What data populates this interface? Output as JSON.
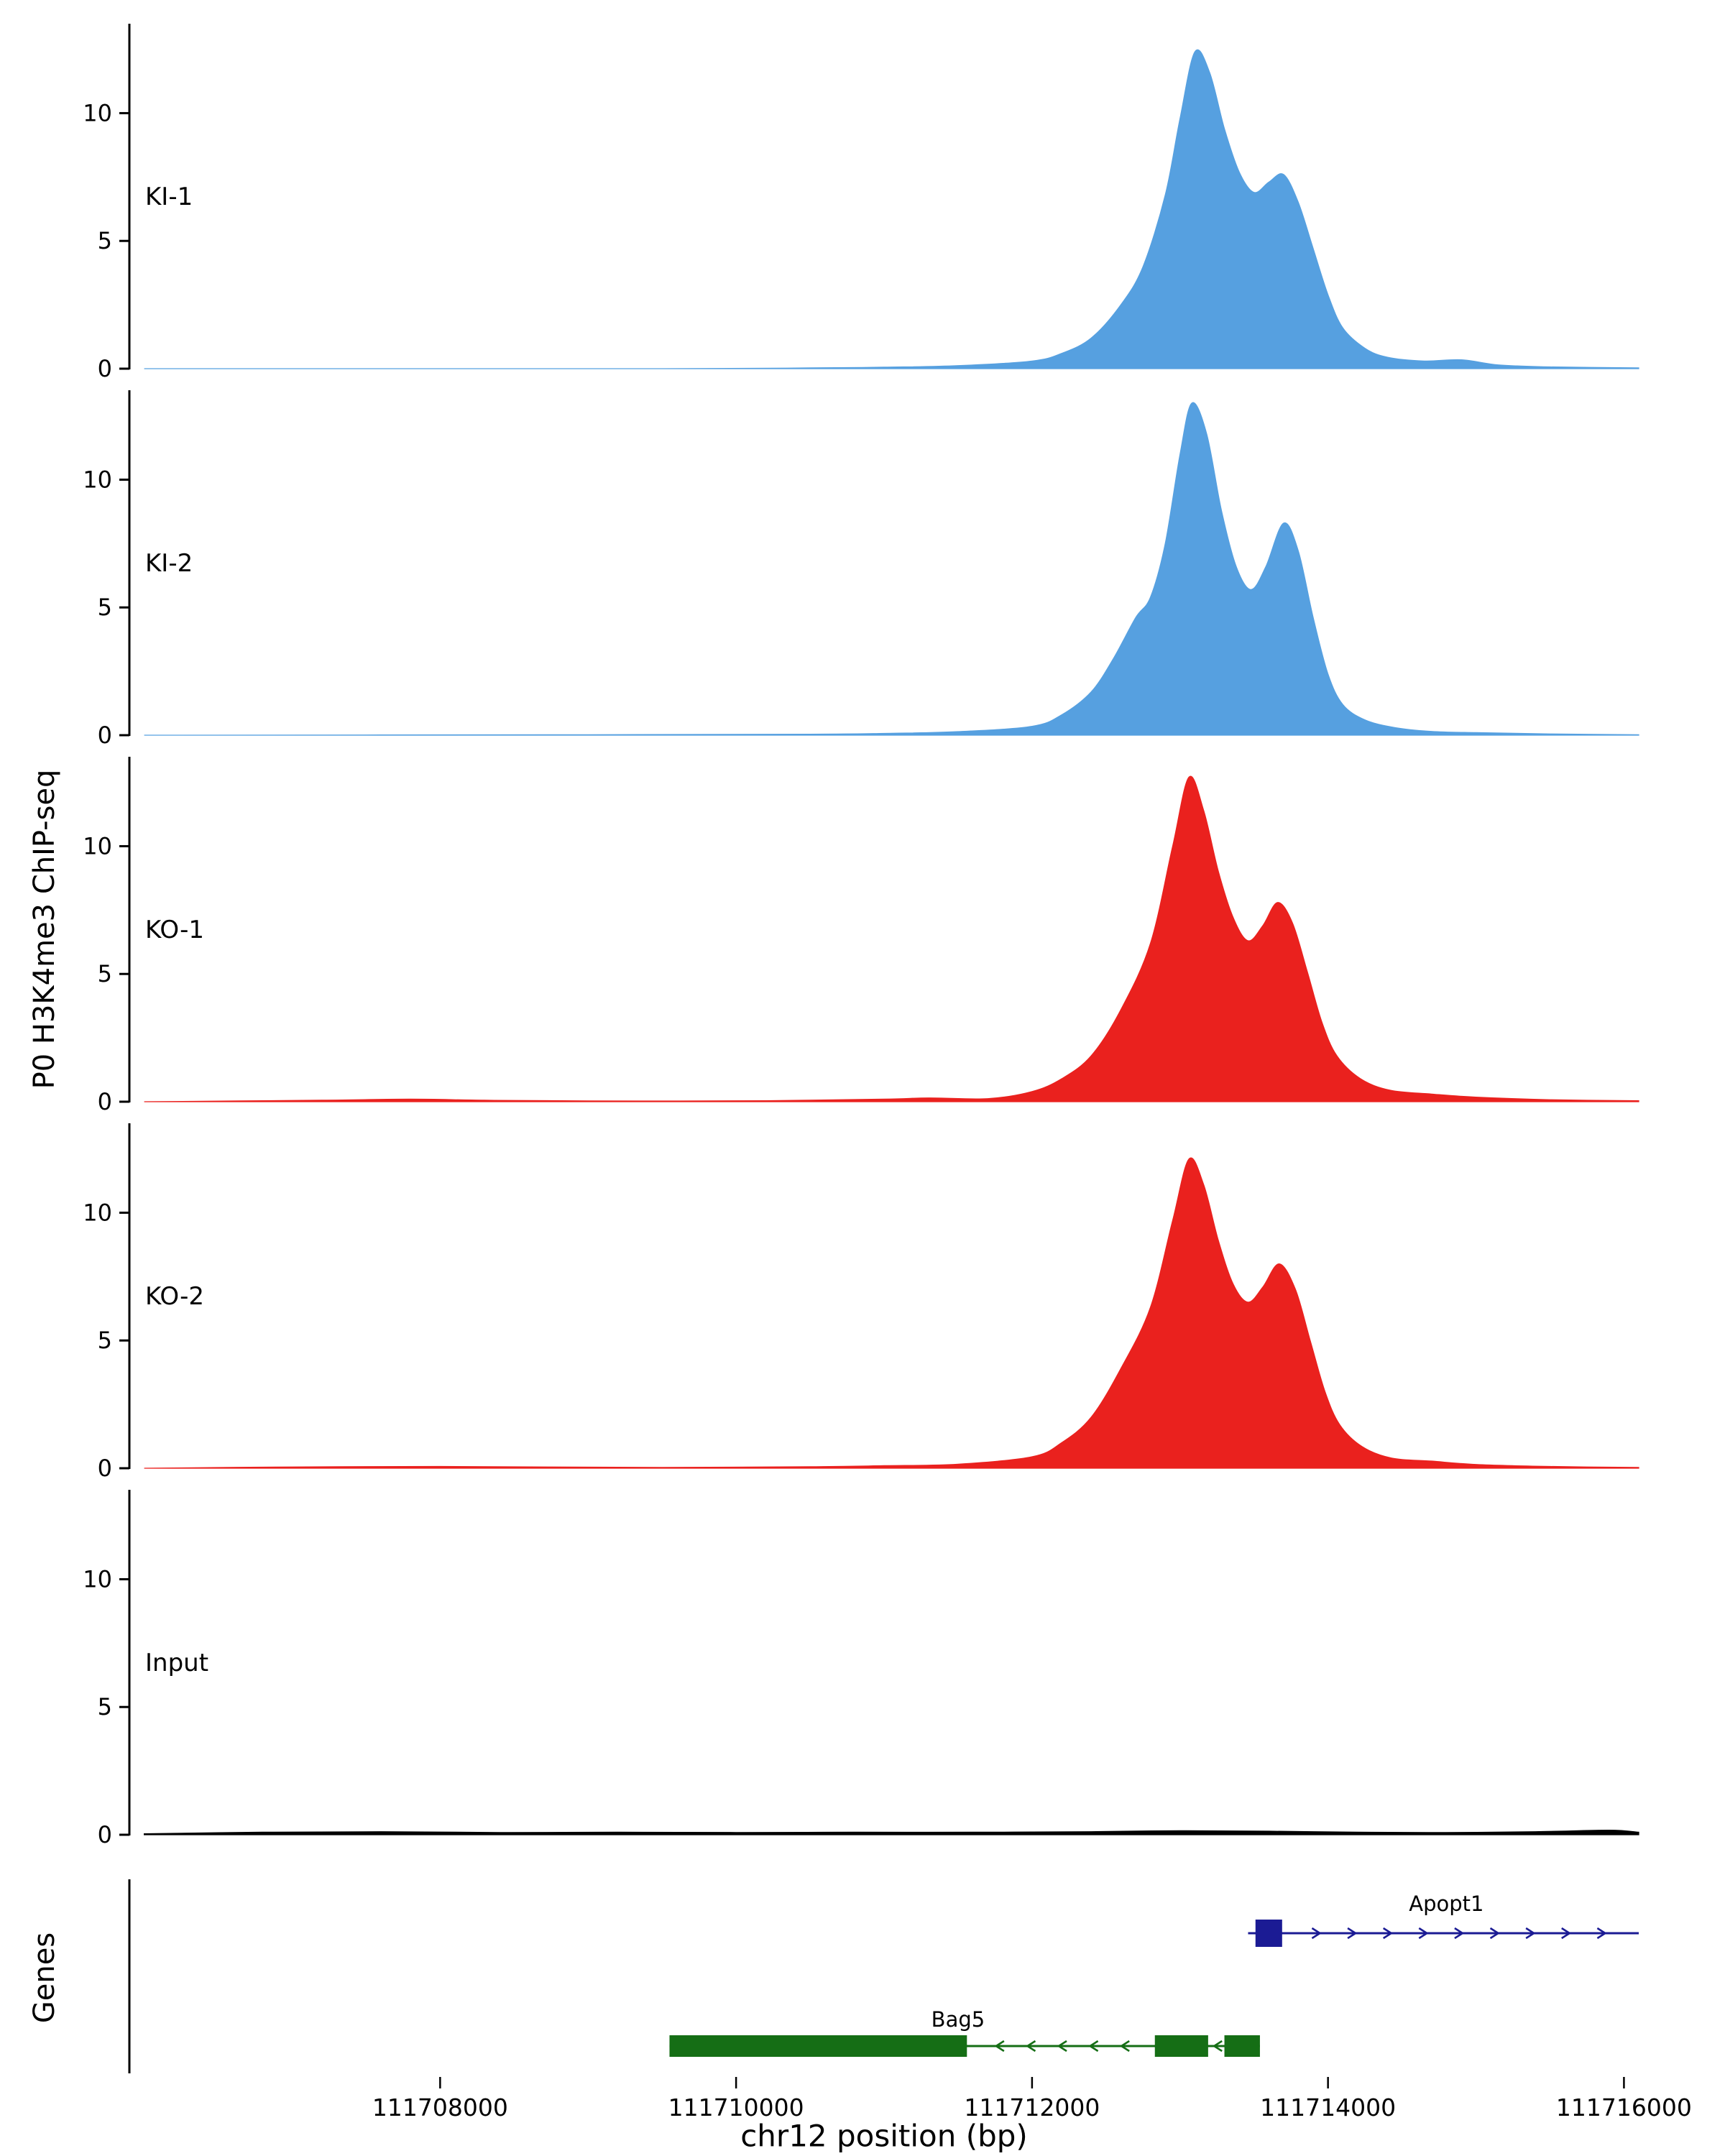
{
  "chart_data": {
    "type": "area",
    "title": "",
    "xlabel": "chr12 position (bp)",
    "ylabel": "P0 H3K4me3 ChIP-seq",
    "xlim": [
      111705900,
      111716100
    ],
    "ylim": [
      0,
      13.5
    ],
    "xticks": [
      111708000,
      111710000,
      111712000,
      111714000,
      111716000
    ],
    "yticks": [
      0,
      5,
      10
    ],
    "grid": false,
    "legend": "none",
    "tracks": [
      {
        "name": "KI-1",
        "color": "#56a0e0",
        "points": [
          [
            111706000,
            0
          ],
          [
            111709500,
            0
          ],
          [
            111710500,
            0.03
          ],
          [
            111711000,
            0.06
          ],
          [
            111711500,
            0.12
          ],
          [
            111712000,
            0.3
          ],
          [
            111712200,
            0.6
          ],
          [
            111712400,
            1.2
          ],
          [
            111712600,
            2.5
          ],
          [
            111712750,
            4.0
          ],
          [
            111712900,
            6.8
          ],
          [
            111713000,
            9.8
          ],
          [
            111713100,
            12.4
          ],
          [
            111713200,
            11.6
          ],
          [
            111713300,
            9.4
          ],
          [
            111713400,
            7.7
          ],
          [
            111713500,
            6.9
          ],
          [
            111713600,
            7.3
          ],
          [
            111713700,
            7.6
          ],
          [
            111713800,
            6.5
          ],
          [
            111713900,
            4.7
          ],
          [
            111714000,
            2.9
          ],
          [
            111714100,
            1.6
          ],
          [
            111714250,
            0.8
          ],
          [
            111714400,
            0.45
          ],
          [
            111714650,
            0.3
          ],
          [
            111714900,
            0.35
          ],
          [
            111715150,
            0.15
          ],
          [
            111715500,
            0.07
          ],
          [
            111716100,
            0.03
          ]
        ]
      },
      {
        "name": "KI-2",
        "color": "#56a0e0",
        "points": [
          [
            111706000,
            0
          ],
          [
            111709000,
            0.02
          ],
          [
            111710500,
            0.04
          ],
          [
            111711000,
            0.07
          ],
          [
            111711500,
            0.14
          ],
          [
            111712000,
            0.35
          ],
          [
            111712200,
            0.8
          ],
          [
            111712400,
            1.7
          ],
          [
            111712550,
            3.0
          ],
          [
            111712700,
            4.6
          ],
          [
            111712800,
            5.4
          ],
          [
            111712900,
            7.5
          ],
          [
            111713000,
            11.0
          ],
          [
            111713080,
            13.0
          ],
          [
            111713180,
            11.8
          ],
          [
            111713280,
            8.8
          ],
          [
            111713380,
            6.6
          ],
          [
            111713480,
            5.7
          ],
          [
            111713580,
            6.6
          ],
          [
            111713700,
            8.3
          ],
          [
            111713800,
            7.2
          ],
          [
            111713900,
            4.6
          ],
          [
            111714000,
            2.4
          ],
          [
            111714100,
            1.2
          ],
          [
            111714250,
            0.6
          ],
          [
            111714450,
            0.3
          ],
          [
            111714700,
            0.15
          ],
          [
            111715000,
            0.1
          ],
          [
            111715500,
            0.05
          ],
          [
            111716100,
            0.02
          ]
        ]
      },
      {
        "name": "KO-1",
        "color": "#ea211e",
        "points": [
          [
            111706000,
            0
          ],
          [
            111707200,
            0.06
          ],
          [
            111707800,
            0.1
          ],
          [
            111708300,
            0.06
          ],
          [
            111709000,
            0.03
          ],
          [
            111710200,
            0.04
          ],
          [
            111711000,
            0.1
          ],
          [
            111711300,
            0.15
          ],
          [
            111711700,
            0.12
          ],
          [
            111712000,
            0.4
          ],
          [
            111712200,
            0.9
          ],
          [
            111712400,
            1.8
          ],
          [
            111712600,
            3.6
          ],
          [
            111712800,
            6.2
          ],
          [
            111712950,
            10.0
          ],
          [
            111713060,
            12.7
          ],
          [
            111713160,
            11.4
          ],
          [
            111713260,
            9.0
          ],
          [
            111713360,
            7.2
          ],
          [
            111713460,
            6.3
          ],
          [
            111713560,
            6.9
          ],
          [
            111713660,
            7.8
          ],
          [
            111713760,
            7.0
          ],
          [
            111713860,
            5.1
          ],
          [
            111713960,
            3.1
          ],
          [
            111714060,
            1.8
          ],
          [
            111714220,
            0.9
          ],
          [
            111714420,
            0.45
          ],
          [
            111714700,
            0.3
          ],
          [
            111715000,
            0.18
          ],
          [
            111715500,
            0.08
          ],
          [
            111716100,
            0.04
          ]
        ]
      },
      {
        "name": "KO-2",
        "color": "#ea211e",
        "points": [
          [
            111706000,
            0
          ],
          [
            111707000,
            0.05
          ],
          [
            111708000,
            0.07
          ],
          [
            111709500,
            0.03
          ],
          [
            111710500,
            0.06
          ],
          [
            111711000,
            0.1
          ],
          [
            111711500,
            0.16
          ],
          [
            111712000,
            0.45
          ],
          [
            111712200,
            1.0
          ],
          [
            111712400,
            2.0
          ],
          [
            111712600,
            3.9
          ],
          [
            111712800,
            6.3
          ],
          [
            111712950,
            9.7
          ],
          [
            111713060,
            12.1
          ],
          [
            111713160,
            11.1
          ],
          [
            111713260,
            8.9
          ],
          [
            111713360,
            7.2
          ],
          [
            111713460,
            6.5
          ],
          [
            111713560,
            7.1
          ],
          [
            111713670,
            8.0
          ],
          [
            111713780,
            7.0
          ],
          [
            111713880,
            5.0
          ],
          [
            111713980,
            3.0
          ],
          [
            111714080,
            1.7
          ],
          [
            111714230,
            0.85
          ],
          [
            111714430,
            0.4
          ],
          [
            111714700,
            0.28
          ],
          [
            111715000,
            0.15
          ],
          [
            111715500,
            0.07
          ],
          [
            111716100,
            0.03
          ]
        ]
      },
      {
        "name": "Input",
        "color": "#000000",
        "points": [
          [
            111706000,
            0.04
          ],
          [
            111706800,
            0.1
          ],
          [
            111707600,
            0.12
          ],
          [
            111708400,
            0.09
          ],
          [
            111709200,
            0.1
          ],
          [
            111710000,
            0.09
          ],
          [
            111710800,
            0.1
          ],
          [
            111711600,
            0.1
          ],
          [
            111712400,
            0.12
          ],
          [
            111713000,
            0.16
          ],
          [
            111713600,
            0.14
          ],
          [
            111714200,
            0.1
          ],
          [
            111714800,
            0.09
          ],
          [
            111715400,
            0.12
          ],
          [
            111715900,
            0.18
          ],
          [
            111716100,
            0.1
          ]
        ]
      }
    ],
    "genes": {
      "panel_label": "Genes",
      "items": [
        {
          "name": "Apopt1",
          "color": "#1b1b94",
          "strand": "+",
          "row": 0,
          "start": 111713460,
          "end": 111716100,
          "exons": [
            [
              111713510,
              111713690
            ]
          ],
          "label_x": 111714800
        },
        {
          "name": "Bag5",
          "color": "#156e15",
          "strand": "-",
          "row": 1,
          "start": 111709550,
          "end": 111713540,
          "exons": [
            [
              111709550,
              111711560
            ],
            [
              111712830,
              111713190
            ],
            [
              111713300,
              111713540
            ]
          ],
          "label_x": 111711500
        }
      ]
    }
  }
}
